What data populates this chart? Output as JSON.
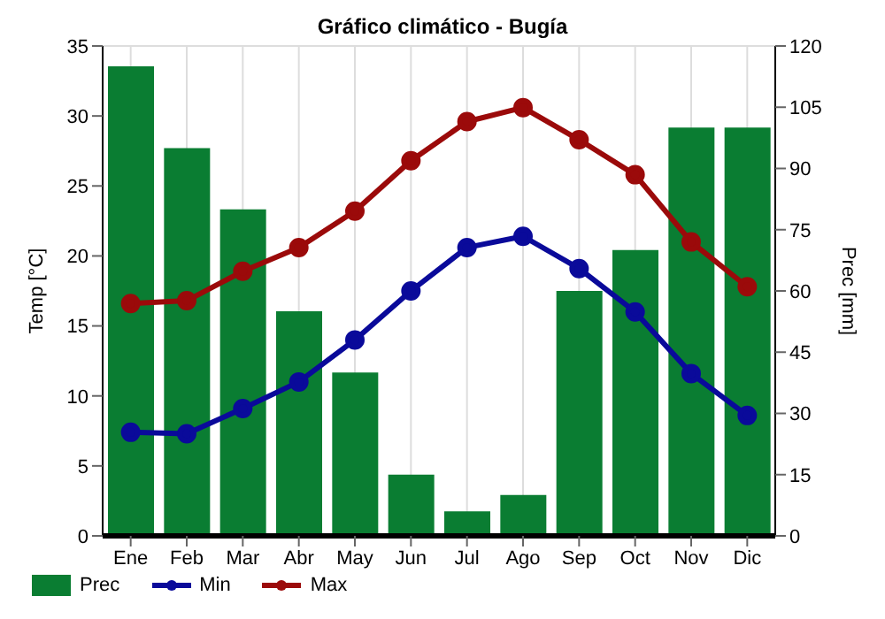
{
  "chart_data": {
    "type": "bar",
    "title": "Gráfico climático - Bugía",
    "ylabel": "Temp [°C]",
    "y2label": "Prec [mm]",
    "categories": [
      "Ene",
      "Feb",
      "Mar",
      "Abr",
      "May",
      "Jun",
      "Jul",
      "Ago",
      "Sep",
      "Oct",
      "Nov",
      "Dic"
    ],
    "series": [
      {
        "name": "Prec",
        "axis": "y2",
        "color": "#0a7d32",
        "values": [
          115,
          95,
          80,
          55,
          40,
          15,
          6,
          10,
          60,
          70,
          100,
          100
        ]
      },
      {
        "name": "Min",
        "type": "line",
        "color": "#0a0a9a",
        "values": [
          7.4,
          7.3,
          9.1,
          11,
          14,
          17.5,
          20.6,
          21.4,
          19.1,
          16,
          11.6,
          8.6
        ]
      },
      {
        "name": "Max",
        "type": "line",
        "color": "#9b0a0a",
        "values": [
          16.6,
          16.8,
          18.9,
          20.6,
          23.2,
          26.8,
          29.6,
          30.6,
          28.3,
          25.8,
          21,
          17.8
        ]
      }
    ],
    "ylim": [
      0,
      35
    ],
    "yticks": [
      0,
      5,
      10,
      15,
      20,
      25,
      30,
      35
    ],
    "y2lim": [
      0,
      120
    ],
    "y2ticks": [
      0,
      15,
      30,
      45,
      60,
      75,
      90,
      105,
      120
    ],
    "grid": true,
    "legend": "bottom",
    "marker": "circle",
    "line_style": "solid"
  }
}
